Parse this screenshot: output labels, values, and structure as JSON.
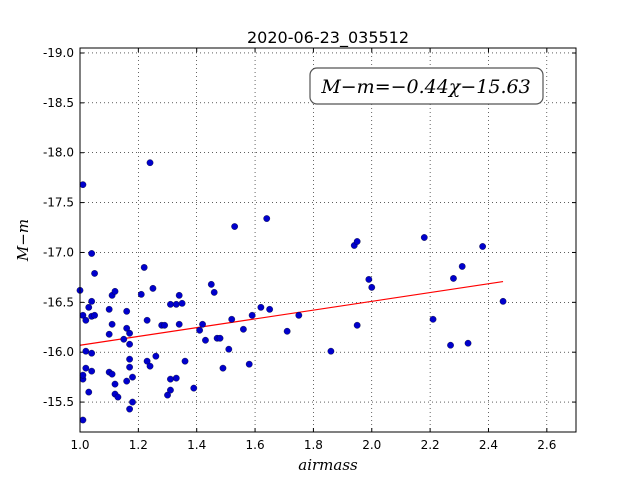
{
  "chart_data": {
    "type": "scatter",
    "title": "2020-06-23_035512",
    "xlabel": "airmass",
    "ylabel": "M−m",
    "xlim": [
      1.0,
      2.7
    ],
    "ylim": [
      -19.05,
      -15.2
    ],
    "y_inverted": true,
    "grid": true,
    "x_ticks": [
      "1.0",
      "1.2",
      "1.4",
      "1.6",
      "1.8",
      "2.0",
      "2.2",
      "2.4",
      "2.6"
    ],
    "y_ticks": [
      "-15.5",
      "-16.0",
      "-16.5",
      "-17.0",
      "-17.5",
      "-18.0",
      "-18.5",
      "-19.0"
    ],
    "annotation": "M−m=−0.44χ−15.63",
    "marker_color": "#0000cc",
    "fit_color": "#ff0000",
    "fit": {
      "slope": -0.44,
      "intercept": -15.63,
      "x_range": [
        1.0,
        2.45
      ]
    },
    "series": [
      {
        "points": [
          [
            1.0,
            -16.62
          ],
          [
            1.01,
            -15.32
          ],
          [
            1.01,
            -15.73
          ],
          [
            1.01,
            -15.77
          ],
          [
            1.01,
            -16.37
          ],
          [
            1.01,
            -17.68
          ],
          [
            1.02,
            -15.84
          ],
          [
            1.02,
            -16.01
          ],
          [
            1.02,
            -16.32
          ],
          [
            1.03,
            -15.6
          ],
          [
            1.03,
            -16.45
          ],
          [
            1.04,
            -16.51
          ],
          [
            1.04,
            -16.36
          ],
          [
            1.04,
            -16.99
          ],
          [
            1.04,
            -15.99
          ],
          [
            1.04,
            -15.81
          ],
          [
            1.05,
            -16.79
          ],
          [
            1.05,
            -16.37
          ],
          [
            1.1,
            -16.18
          ],
          [
            1.1,
            -15.8
          ],
          [
            1.1,
            -16.43
          ],
          [
            1.11,
            -16.57
          ],
          [
            1.11,
            -16.28
          ],
          [
            1.11,
            -15.78
          ],
          [
            1.12,
            -15.68
          ],
          [
            1.12,
            -15.58
          ],
          [
            1.12,
            -16.61
          ],
          [
            1.13,
            -15.55
          ],
          [
            1.15,
            -16.13
          ],
          [
            1.16,
            -16.41
          ],
          [
            1.16,
            -16.24
          ],
          [
            1.16,
            -15.71
          ],
          [
            1.17,
            -15.43
          ],
          [
            1.17,
            -16.08
          ],
          [
            1.17,
            -16.19
          ],
          [
            1.17,
            -15.93
          ],
          [
            1.17,
            -15.85
          ],
          [
            1.18,
            -15.5
          ],
          [
            1.18,
            -15.75
          ],
          [
            1.21,
            -16.58
          ],
          [
            1.22,
            -16.85
          ],
          [
            1.23,
            -15.91
          ],
          [
            1.23,
            -16.32
          ],
          [
            1.24,
            -15.86
          ],
          [
            1.24,
            -17.9
          ],
          [
            1.25,
            -16.64
          ],
          [
            1.26,
            -15.96
          ],
          [
            1.28,
            -16.27
          ],
          [
            1.29,
            -16.27
          ],
          [
            1.3,
            -15.57
          ],
          [
            1.31,
            -15.62
          ],
          [
            1.31,
            -15.73
          ],
          [
            1.31,
            -16.48
          ],
          [
            1.33,
            -15.74
          ],
          [
            1.33,
            -16.48
          ],
          [
            1.34,
            -16.57
          ],
          [
            1.34,
            -16.28
          ],
          [
            1.35,
            -16.49
          ],
          [
            1.36,
            -15.91
          ],
          [
            1.39,
            -15.64
          ],
          [
            1.41,
            -16.22
          ],
          [
            1.42,
            -16.28
          ],
          [
            1.43,
            -16.12
          ],
          [
            1.45,
            -16.68
          ],
          [
            1.46,
            -16.6
          ],
          [
            1.47,
            -16.14
          ],
          [
            1.48,
            -16.14
          ],
          [
            1.49,
            -15.84
          ],
          [
            1.51,
            -16.03
          ],
          [
            1.52,
            -16.33
          ],
          [
            1.53,
            -17.26
          ],
          [
            1.56,
            -16.23
          ],
          [
            1.58,
            -15.88
          ],
          [
            1.59,
            -16.37
          ],
          [
            1.62,
            -16.45
          ],
          [
            1.64,
            -17.34
          ],
          [
            1.65,
            -16.43
          ],
          [
            1.71,
            -16.21
          ],
          [
            1.75,
            -16.37
          ],
          [
            1.86,
            -16.01
          ],
          [
            1.94,
            -17.07
          ],
          [
            1.95,
            -16.27
          ],
          [
            1.95,
            -17.11
          ],
          [
            1.99,
            -16.73
          ],
          [
            2.0,
            -16.65
          ],
          [
            2.18,
            -17.15
          ],
          [
            2.21,
            -16.33
          ],
          [
            2.27,
            -16.07
          ],
          [
            2.28,
            -16.74
          ],
          [
            2.31,
            -16.86
          ],
          [
            2.33,
            -16.09
          ],
          [
            2.38,
            -17.06
          ],
          [
            2.45,
            -16.51
          ]
        ]
      }
    ]
  }
}
